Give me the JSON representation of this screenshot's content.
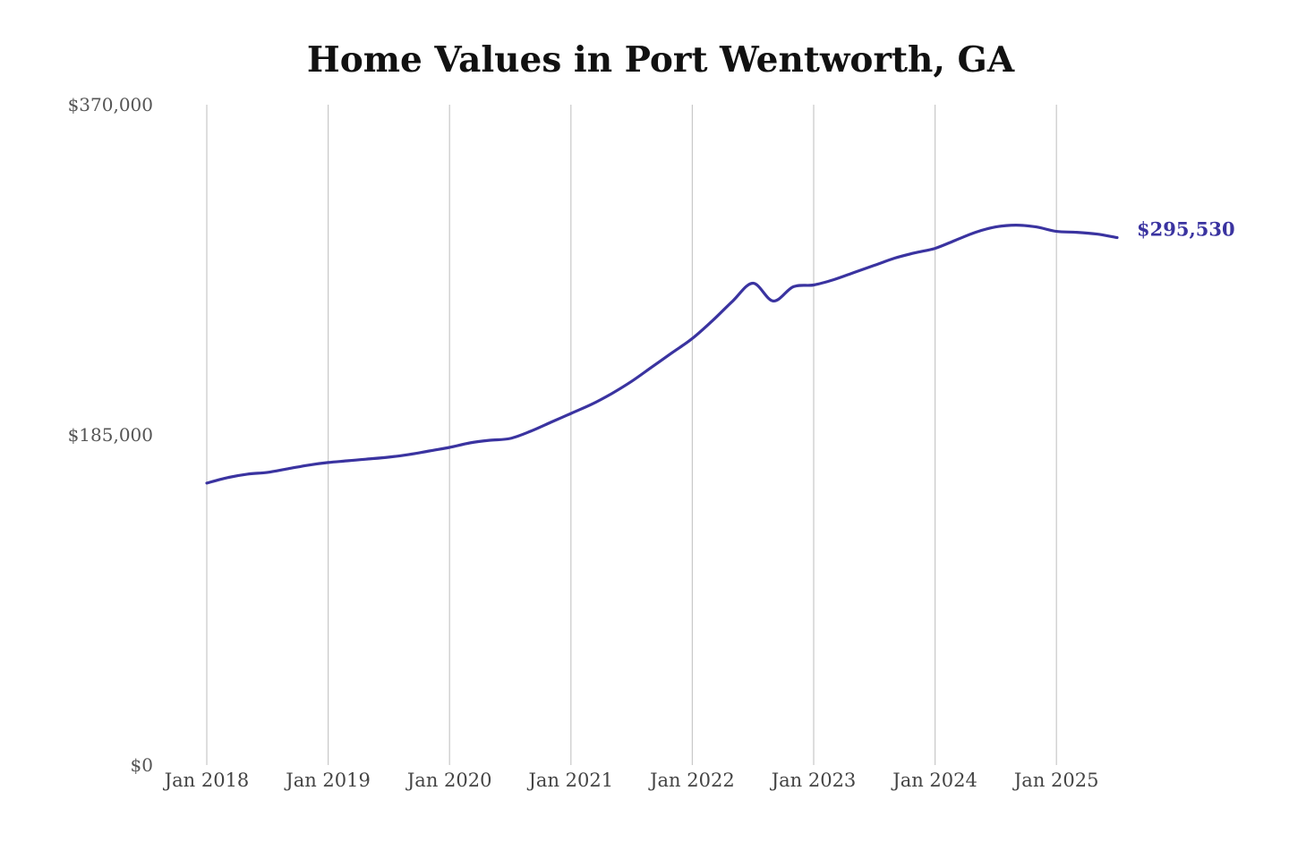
{
  "chart_data": {
    "type": "line",
    "title": "Home Values in Port Wentworth, GA",
    "xlabel": "",
    "ylabel": "",
    "ylim": [
      0,
      370000
    ],
    "y_ticks": [
      {
        "value": 0,
        "label": "$0"
      },
      {
        "value": 185000,
        "label": "$185,000"
      },
      {
        "value": 370000,
        "label": "$370,000"
      }
    ],
    "x_ticks": [
      {
        "value": 2018,
        "label": "Jan 2018"
      },
      {
        "value": 2019,
        "label": "Jan 2019"
      },
      {
        "value": 2020,
        "label": "Jan 2020"
      },
      {
        "value": 2021,
        "label": "Jan 2021"
      },
      {
        "value": 2022,
        "label": "Jan 2022"
      },
      {
        "value": 2023,
        "label": "Jan 2023"
      },
      {
        "value": 2024,
        "label": "Jan 2024"
      },
      {
        "value": 2025,
        "label": "Jan 2025"
      }
    ],
    "xlim": [
      2018,
      2025.5
    ],
    "grid": "vertical",
    "line_color": "#3a33a0",
    "end_label": "$295,530",
    "series": [
      {
        "x": [
          2018.0,
          2018.167,
          2018.333,
          2018.5,
          2018.667,
          2018.833,
          2019.0,
          2019.167,
          2019.333,
          2019.5,
          2019.667,
          2019.833,
          2020.0,
          2020.167,
          2020.333,
          2020.5,
          2020.667,
          2020.833,
          2021.0,
          2021.167,
          2021.333,
          2021.5,
          2021.667,
          2021.833,
          2022.0,
          2022.167,
          2022.333,
          2022.5,
          2022.667,
          2022.833,
          2023.0,
          2023.167,
          2023.333,
          2023.5,
          2023.667,
          2023.833,
          2024.0,
          2024.167,
          2024.333,
          2024.5,
          2024.667,
          2024.833,
          2025.0,
          2025.167,
          2025.333,
          2025.5
        ],
        "values": [
          158000,
          161000,
          163000,
          164000,
          166000,
          168000,
          169500,
          170500,
          171500,
          172500,
          174000,
          176000,
          178000,
          180500,
          182000,
          183000,
          187000,
          192000,
          197000,
          202000,
          208000,
          215000,
          223000,
          231000,
          239000,
          249000,
          260000,
          270000,
          260000,
          268000,
          269000,
          272000,
          276000,
          280000,
          284000,
          287000,
          289500,
          294000,
          298500,
          301500,
          302500,
          301500,
          299000,
          298500,
          297500,
          295530
        ]
      }
    ]
  }
}
